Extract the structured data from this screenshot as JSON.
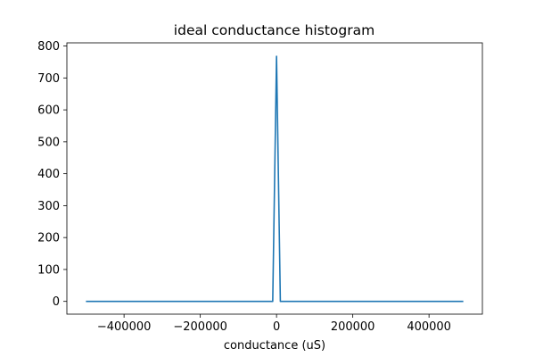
{
  "chart_data": {
    "type": "line",
    "title": "ideal conductance histogram",
    "xlabel": "conductance (uS)",
    "ylabel": "",
    "xlim": [
      -550000,
      540000
    ],
    "ylim": [
      -40,
      810
    ],
    "x_ticks": [
      {
        "value": -400000,
        "label": "−400000"
      },
      {
        "value": -200000,
        "label": "−200000"
      },
      {
        "value": 0,
        "label": "0"
      },
      {
        "value": 200000,
        "label": "200000"
      },
      {
        "value": 400000,
        "label": "400000"
      }
    ],
    "y_ticks": [
      {
        "value": 0,
        "label": "0"
      },
      {
        "value": 100,
        "label": "100"
      },
      {
        "value": 200,
        "label": "200"
      },
      {
        "value": 300,
        "label": "300"
      },
      {
        "value": 400,
        "label": "400"
      },
      {
        "value": 500,
        "label": "500"
      },
      {
        "value": 600,
        "label": "600"
      },
      {
        "value": 700,
        "label": "700"
      },
      {
        "value": 800,
        "label": "800"
      }
    ],
    "grid": false,
    "legend": "none",
    "series": [
      {
        "color": "#1f77b4",
        "x": [
          -500000,
          -10000,
          0,
          10000,
          490000
        ],
        "y": [
          0,
          0,
          768,
          0,
          0
        ]
      }
    ]
  }
}
